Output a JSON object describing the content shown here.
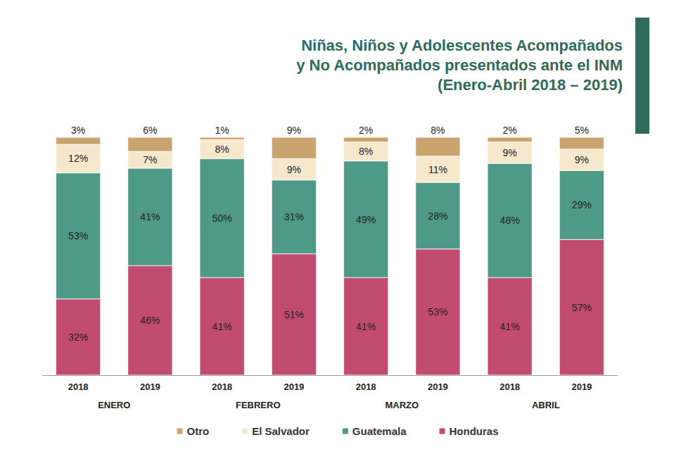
{
  "chart_data": {
    "type": "bar",
    "title": "Niñas, Niños y Adolescentes Acompañados y No Acompañados presentados ante el INM (Enero-Abril 2018 – 2019)",
    "categories": [
      "2018",
      "2019",
      "2018",
      "2019",
      "2018",
      "2019",
      "2018",
      "2019"
    ],
    "category_groups": [
      "ENERO",
      "FEBRERO",
      "MARZO",
      "ABRIL"
    ],
    "series": [
      {
        "name": "Otro",
        "color": "#c9a46e",
        "values": [
          3,
          6,
          1,
          9,
          2,
          8,
          2,
          5
        ],
        "value_labels": [
          "3%",
          "6%",
          "1%",
          "9%",
          "2%",
          "8%",
          "2%",
          "5%"
        ]
      },
      {
        "name": "El Salvador",
        "color": "#f6e8cc",
        "values": [
          12,
          7,
          8,
          9,
          8,
          11,
          9,
          9
        ],
        "value_labels": [
          "12%",
          "7%",
          "8%",
          "9%",
          "8%",
          "11%",
          "9%",
          "9%"
        ]
      },
      {
        "name": "Guatemala",
        "color": "#4f9a86",
        "values": [
          53,
          41,
          50,
          31,
          49,
          28,
          48,
          29
        ],
        "value_labels": [
          "53%",
          "41%",
          "50%",
          "31%",
          "49%",
          "28%",
          "48%",
          "29%"
        ]
      },
      {
        "name": "Honduras",
        "color": "#c24b70",
        "values": [
          32,
          46,
          41,
          51,
          41,
          53,
          41,
          57
        ],
        "value_labels": [
          "32%",
          "46%",
          "41%",
          "51%",
          "41%",
          "53%",
          "41%",
          "57%"
        ]
      }
    ],
    "ylim": [
      0,
      100
    ],
    "stacked": true,
    "data_labels": true,
    "tick_labels": "x",
    "grid": false,
    "legend": "bottom"
  }
}
